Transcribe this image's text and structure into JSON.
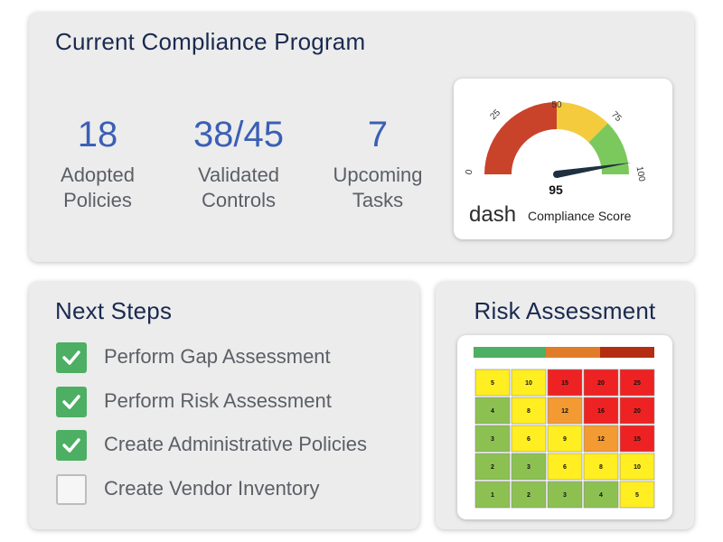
{
  "compliance": {
    "title": "Current Compliance Program",
    "stats": [
      {
        "value": "18",
        "label_line1": "Adopted",
        "label_line2": "Policies"
      },
      {
        "value": "38/45",
        "label_line1": "Validated",
        "label_line2": "Controls"
      },
      {
        "value": "7",
        "label_line1": "Upcoming",
        "label_line2": "Tasks"
      }
    ],
    "gauge": {
      "score": 95,
      "score_label": "95",
      "ticks": [
        "0",
        "25",
        "50",
        "75",
        "100"
      ],
      "brand": "dash",
      "caption": "Compliance Score",
      "colors": {
        "red": "#c9432b",
        "yellow": "#f4cb3d",
        "green": "#7bc95c",
        "needle": "#1f3140"
      }
    }
  },
  "next_steps": {
    "title": "Next Steps",
    "items": [
      {
        "label": "Perform Gap Assessment",
        "checked": true
      },
      {
        "label": "Perform Risk Assessment",
        "checked": true
      },
      {
        "label": "Create Administrative Policies",
        "checked": true
      },
      {
        "label": "Create Vendor Inventory",
        "checked": false
      }
    ],
    "check_color": "#4caf63"
  },
  "risk": {
    "title": "Risk Assessment",
    "bar_colors": [
      "#4caf63",
      "#e07b2a",
      "#b32d12"
    ],
    "matrix": [
      [
        "5",
        "10",
        "15",
        "20",
        "25"
      ],
      [
        "4",
        "8",
        "12",
        "16",
        "20"
      ],
      [
        "3",
        "6",
        "9",
        "12",
        "15"
      ],
      [
        "2",
        "3",
        "6",
        "8",
        "10"
      ],
      [
        "1",
        "2",
        "3",
        "4",
        "5"
      ]
    ],
    "matrix_colors": [
      [
        "#ffee22",
        "#ffee22",
        "#ee2222",
        "#ee2222",
        "#ee2222"
      ],
      [
        "#8cc152",
        "#ffee22",
        "#f39a33",
        "#ee2222",
        "#ee2222"
      ],
      [
        "#8cc152",
        "#ffee22",
        "#ffee22",
        "#f39a33",
        "#ee2222"
      ],
      [
        "#8cc152",
        "#8cc152",
        "#ffee22",
        "#ffee22",
        "#ffee22"
      ],
      [
        "#8cc152",
        "#8cc152",
        "#8cc152",
        "#8cc152",
        "#ffee22"
      ]
    ]
  }
}
